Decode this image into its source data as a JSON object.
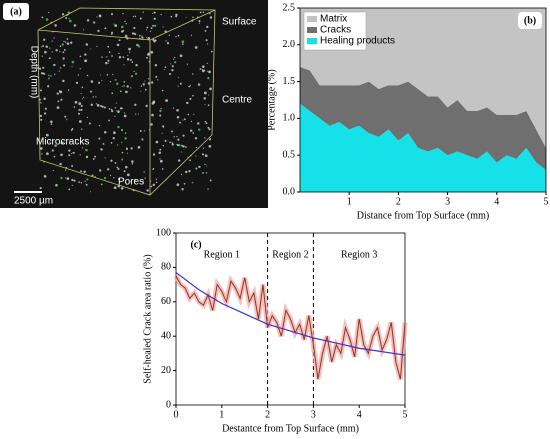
{
  "panel_a": {
    "label": "(a)",
    "annotations": [
      "Surface",
      "Depth (mm)",
      "Centre",
      "Microcracks",
      "Pores",
      "2500 µm"
    ]
  },
  "chart_data": [
    {
      "type": "stacked-area",
      "label": "(b)",
      "x_label": "Distance from Top Surface (mm)",
      "y_label": "Percentage (%)",
      "x": [
        0,
        0.2,
        0.4,
        0.6,
        0.8,
        1,
        1.2,
        1.4,
        1.6,
        1.8,
        2,
        2.2,
        2.4,
        2.6,
        2.8,
        3,
        3.2,
        3.4,
        3.6,
        3.8,
        4,
        4.2,
        4.4,
        4.6,
        4.8,
        5
      ],
      "series": [
        {
          "name": "Matrix",
          "color": "#c4c4c4",
          "values": [
            0.8,
            0.85,
            1.05,
            1.05,
            1.05,
            1.05,
            1.05,
            1.0,
            1.1,
            1.05,
            1.05,
            1.0,
            1.1,
            1.2,
            1.2,
            1.35,
            1.25,
            1.4,
            1.4,
            1.35,
            1.45,
            1.45,
            1.45,
            1.4,
            1.65,
            1.9
          ]
        },
        {
          "name": "Cracks",
          "color": "#6f6f6f",
          "values": [
            0.5,
            0.55,
            0.45,
            0.55,
            0.5,
            0.6,
            0.55,
            0.7,
            0.65,
            0.6,
            0.75,
            0.7,
            0.8,
            0.75,
            0.7,
            0.65,
            0.7,
            0.6,
            0.65,
            0.6,
            0.65,
            0.55,
            0.6,
            0.5,
            0.45,
            0.3
          ]
        },
        {
          "name": "Healing products",
          "color": "#16e0e8",
          "values": [
            1.2,
            1.1,
            1.0,
            0.9,
            0.95,
            0.85,
            0.9,
            0.8,
            0.75,
            0.85,
            0.7,
            0.8,
            0.6,
            0.55,
            0.6,
            0.5,
            0.55,
            0.5,
            0.45,
            0.55,
            0.4,
            0.5,
            0.45,
            0.6,
            0.4,
            0.3
          ]
        }
      ],
      "xlim": [
        0,
        5
      ],
      "xticks": [
        1,
        2,
        3,
        4,
        5
      ],
      "ylim": [
        0,
        2.5
      ],
      "yticks": [
        {
          "value": 0,
          "label": "0.0"
        },
        0.5,
        {
          "value": 1,
          "label": "1.0"
        },
        1.5,
        {
          "value": 2,
          "label": "2.0"
        },
        2.5
      ],
      "legend": "top-left"
    },
    {
      "type": "line",
      "label": "(c)",
      "x_label": "Destantce from Top Surface (mm)",
      "y_label": "Self-healed Crack area ratio (%)",
      "series": [
        {
          "color": "#8b3a0f",
          "x": [
            0,
            0.1,
            0.2,
            0.3,
            0.4,
            0.5,
            0.6,
            0.7,
            0.8,
            0.9,
            1,
            1.1,
            1.2,
            1.3,
            1.4,
            1.5,
            1.6,
            1.7,
            1.8,
            1.9,
            2,
            2.1,
            2.2,
            2.3,
            2.4,
            2.5,
            2.6,
            2.7,
            2.8,
            2.9,
            3,
            3.1,
            3.2,
            3.3,
            3.4,
            3.5,
            3.6,
            3.7,
            3.8,
            3.9,
            4,
            4.1,
            4.2,
            4.3,
            4.4,
            4.5,
            4.6,
            4.7,
            4.8,
            4.9,
            5
          ],
          "values": [
            75,
            70,
            68,
            62,
            65,
            60,
            58,
            64,
            55,
            70,
            66,
            60,
            72,
            68,
            62,
            74,
            60,
            65,
            50,
            70,
            45,
            52,
            48,
            40,
            55,
            50,
            42,
            47,
            38,
            52,
            35,
            15,
            30,
            40,
            25,
            35,
            30,
            45,
            38,
            28,
            50,
            35,
            30,
            40,
            45,
            32,
            38,
            48,
            25,
            15,
            48
          ]
        },
        {
          "color": "#3b2fd1",
          "x": [
            0,
            0.5,
            1,
            1.5,
            2,
            2.5,
            3,
            3.5,
            4,
            4.5,
            5
          ],
          "values": [
            77,
            67,
            59,
            53,
            47,
            43,
            39,
            36,
            33,
            31,
            29
          ]
        }
      ],
      "regions": [
        "Region 1",
        "Region 2",
        "Region 3"
      ],
      "dividers": [
        2,
        3
      ],
      "xlim": [
        0,
        5
      ],
      "xticks": [
        0,
        1,
        2,
        3,
        4,
        5
      ],
      "ylim": [
        0,
        100
      ],
      "yticks": [
        0,
        20,
        40,
        60,
        80,
        100
      ]
    }
  ]
}
